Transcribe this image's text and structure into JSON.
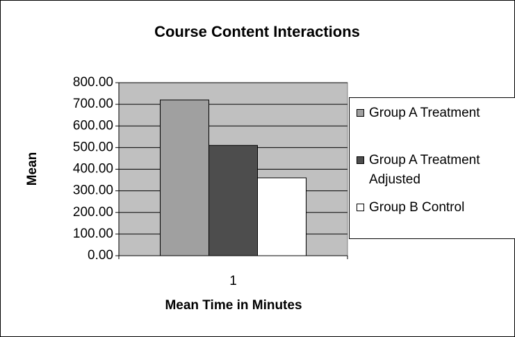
{
  "chart_data": {
    "type": "bar",
    "title": "Course Content Interactions",
    "x_label": "Mean Time in Minutes",
    "y_label": "Mean",
    "categories": [
      "1"
    ],
    "series": [
      {
        "name": "Group A Treatment",
        "color": "#a0a0a0",
        "values": [
          720
        ]
      },
      {
        "name": "Group A Treatment Adjusted",
        "color": "#4d4d4d",
        "values": [
          510
        ]
      },
      {
        "name": "Group B Control",
        "color": "#ffffff",
        "values": [
          360
        ]
      }
    ],
    "ylim": [
      0,
      800
    ],
    "yticks": [
      {
        "value": 0,
        "label": "0.00"
      },
      {
        "value": 100,
        "label": "100.00"
      },
      {
        "value": 200,
        "label": "200.00"
      },
      {
        "value": 300,
        "label": "300.00"
      },
      {
        "value": 400,
        "label": "400.00"
      },
      {
        "value": 500,
        "label": "500.00"
      },
      {
        "value": 600,
        "label": "600.00"
      },
      {
        "value": 700,
        "label": "700.00"
      },
      {
        "value": 800,
        "label": "800.00"
      }
    ],
    "grid": true,
    "legend": "right"
  }
}
